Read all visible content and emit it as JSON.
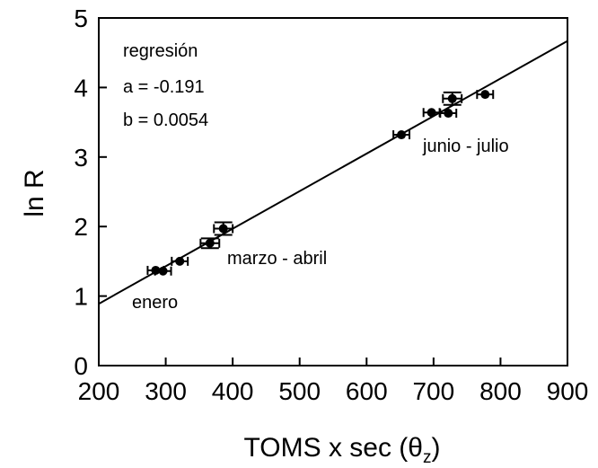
{
  "chart_data": {
    "type": "scatter",
    "xlabel_main": "TOMS x sec (θ",
    "xlabel_sub": "z",
    "xlabel_close": ")",
    "ylabel": "ln R",
    "xlim": [
      200,
      900
    ],
    "ylim": [
      0,
      5
    ],
    "x_ticks": [
      200,
      300,
      400,
      500,
      600,
      700,
      800,
      900
    ],
    "y_ticks": [
      0,
      1,
      2,
      3,
      4,
      5
    ],
    "x_tick_labels": [
      "200",
      "300",
      "400",
      "500",
      "600",
      "700",
      "800",
      "900"
    ],
    "y_tick_labels": [
      "0",
      "1",
      "2",
      "3",
      "4",
      "5"
    ],
    "grid": false,
    "legend": "none",
    "annotations": {
      "regression_title": "regresión",
      "a_text": "a = -0.191",
      "b_text": "b =  0.0054",
      "enero": "enero",
      "marzo_abril": "marzo - abril",
      "junio_julio": "junio - julio"
    },
    "regression": {
      "a": -0.191,
      "b": 0.0054,
      "x_start": 200,
      "x_end": 900
    },
    "points": [
      {
        "x": 285,
        "y": 1.37,
        "xerr": 12
      },
      {
        "x": 296,
        "y": 1.36,
        "xerr": 12
      },
      {
        "x": 321,
        "y": 1.5,
        "xerr": 12
      },
      {
        "x": 366,
        "y": 1.76,
        "xerr": 14,
        "yerr": 0.07
      },
      {
        "x": 386,
        "y": 1.97,
        "xerr": 14,
        "yerr": 0.09
      },
      {
        "x": 652,
        "y": 3.32,
        "xerr": 12
      },
      {
        "x": 697,
        "y": 3.64,
        "xerr": 12
      },
      {
        "x": 722,
        "y": 3.63,
        "xerr": 12
      },
      {
        "x": 728,
        "y": 3.84,
        "xerr": 14,
        "yerr": 0.09
      },
      {
        "x": 777,
        "y": 3.9,
        "xerr": 12
      }
    ],
    "colors": {
      "marker": "#000000",
      "line": "#000000"
    }
  }
}
